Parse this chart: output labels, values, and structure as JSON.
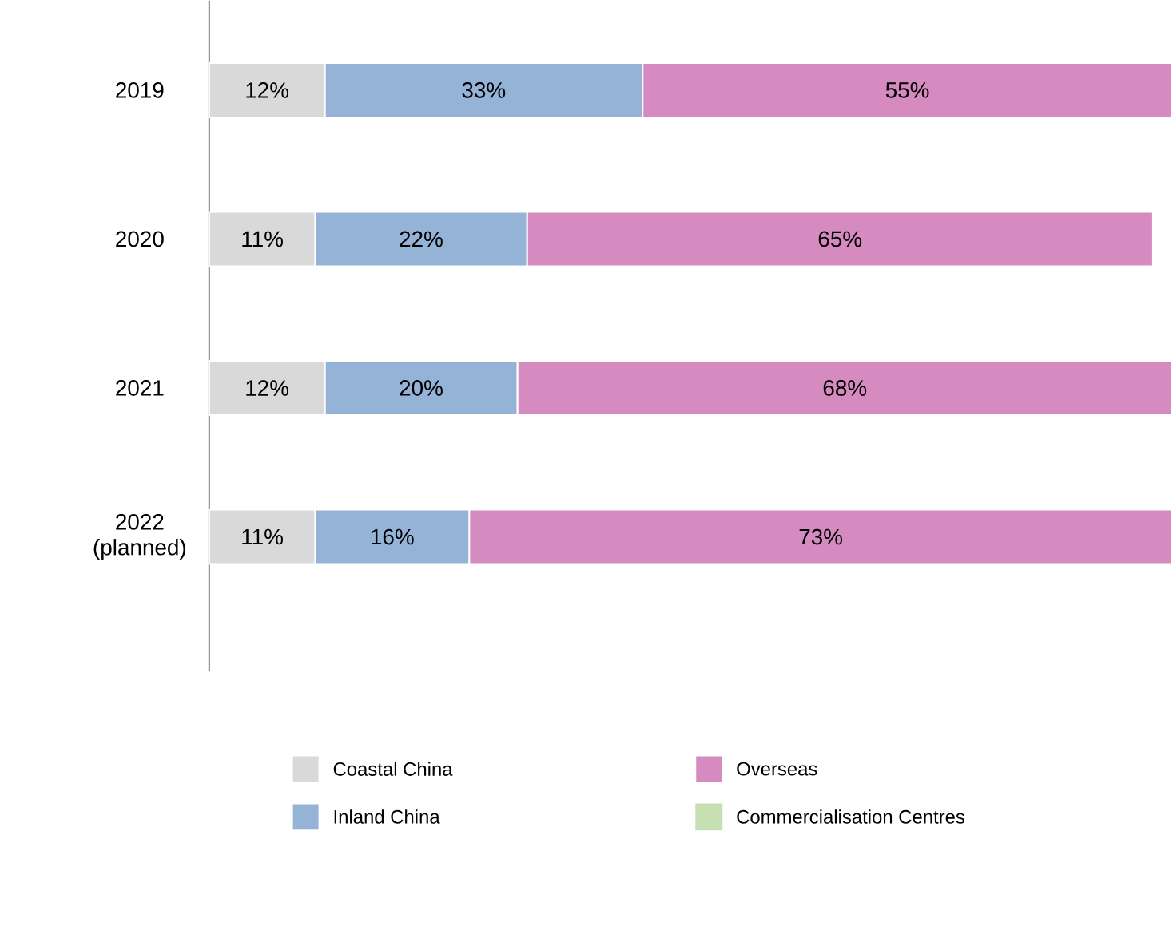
{
  "chart_data": {
    "type": "bar",
    "orientation": "horizontal",
    "stacked": true,
    "categories": [
      "2019",
      "2020",
      "2021",
      "2022 (planned)"
    ],
    "series": [
      {
        "name": "Coastal China",
        "color": "#d9d9d9",
        "values": [
          12,
          11,
          12,
          11
        ],
        "value_labels": [
          "12%",
          "11%",
          "12%",
          "11%"
        ]
      },
      {
        "name": "Inland China",
        "color": "#95b3d7",
        "values": [
          33,
          22,
          20,
          16
        ],
        "value_labels": [
          "33%",
          "22%",
          "20%",
          "16%"
        ]
      },
      {
        "name": "Overseas",
        "color": "#d58bc0",
        "values": [
          55,
          65,
          68,
          73
        ],
        "value_labels": [
          "55%",
          "65%",
          "68%",
          "73%"
        ]
      },
      {
        "name": "Commercialisation Centres",
        "color": "#c6e0b4",
        "values": [
          null,
          null,
          null,
          null
        ]
      }
    ],
    "xlim": [
      0,
      100
    ],
    "tick_labels": "y",
    "legend": "bottom"
  }
}
